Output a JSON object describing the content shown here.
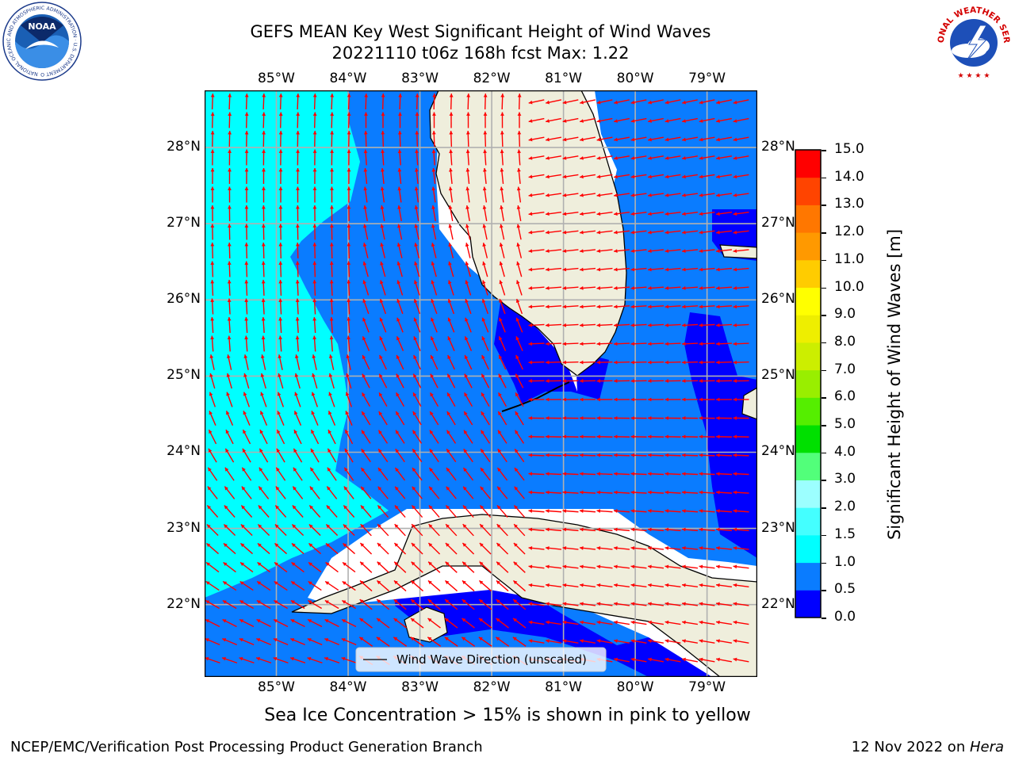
{
  "title": {
    "line1": "GEFS MEAN Key West Significant Height of Wind Waves",
    "line2": "20221110 t06z 168h fcst    Max: 1.22"
  },
  "map": {
    "lon_range": [
      -86,
      -78.3
    ],
    "lat_range": [
      21.05,
      28.75
    ],
    "lon_ticks": [
      {
        "value": -85,
        "label": "85°W"
      },
      {
        "value": -84,
        "label": "84°W"
      },
      {
        "value": -83,
        "label": "83°W"
      },
      {
        "value": -82,
        "label": "82°W"
      },
      {
        "value": -81,
        "label": "81°W"
      },
      {
        "value": -80,
        "label": "80°W"
      },
      {
        "value": -79,
        "label": "79°W"
      }
    ],
    "lat_ticks": [
      {
        "value": 28,
        "label": "28°N"
      },
      {
        "value": 27,
        "label": "27°N"
      },
      {
        "value": 26,
        "label": "26°N"
      },
      {
        "value": 25,
        "label": "25°N"
      },
      {
        "value": 24,
        "label": "24°N"
      },
      {
        "value": 23,
        "label": "23°N"
      },
      {
        "value": 22,
        "label": "22°N"
      }
    ],
    "grid": true,
    "legend": {
      "label": "Wind Wave Direction (unscaled)",
      "placement": "bottom-center"
    }
  },
  "colorbar": {
    "label": "Significant Height of Wind Waves [m]",
    "ticks": [
      "0.0",
      "0.5",
      "1.0",
      "1.5",
      "2.0",
      "3.0",
      "4.0",
      "5.0",
      "6.0",
      "7.0",
      "8.0",
      "9.0",
      "10.0",
      "11.0",
      "12.0",
      "13.0",
      "14.0",
      "15.0"
    ],
    "colors": [
      "#0000ff",
      "#0a7cff",
      "#00ffff",
      "#44ffff",
      "#9cffff",
      "#52ff7a",
      "#00e000",
      "#55ee00",
      "#99ee00",
      "#ccee00",
      "#eeee00",
      "#ffff00",
      "#ffcc00",
      "#ff9900",
      "#ff7700",
      "#ff4400",
      "#ff0000"
    ]
  },
  "colors": {
    "wave_00_05": "#0000ff",
    "wave_05_10": "#0a7cff",
    "wave_10_15": "#00ffff",
    "land": "#efeedc",
    "arrows": "#ff0000",
    "grid": "#b0b0b0"
  },
  "subtitle": "Sea Ice Concentration > 15% is shown in pink to yellow",
  "footer": {
    "left": "NCEP/EMC/Verification Post Processing Product Generation Branch",
    "right_date": "12 Nov 2022 on ",
    "right_host": "Hera"
  },
  "logos": {
    "left": {
      "text": "NOAA",
      "ring": "NATIONAL OCEANIC AND ATMOSPHERIC ADMINISTRATION · U.S. DEPARTMENT OF COMMERCE"
    },
    "right": {
      "ring": "NATIONAL WEATHER SERVICE"
    }
  }
}
